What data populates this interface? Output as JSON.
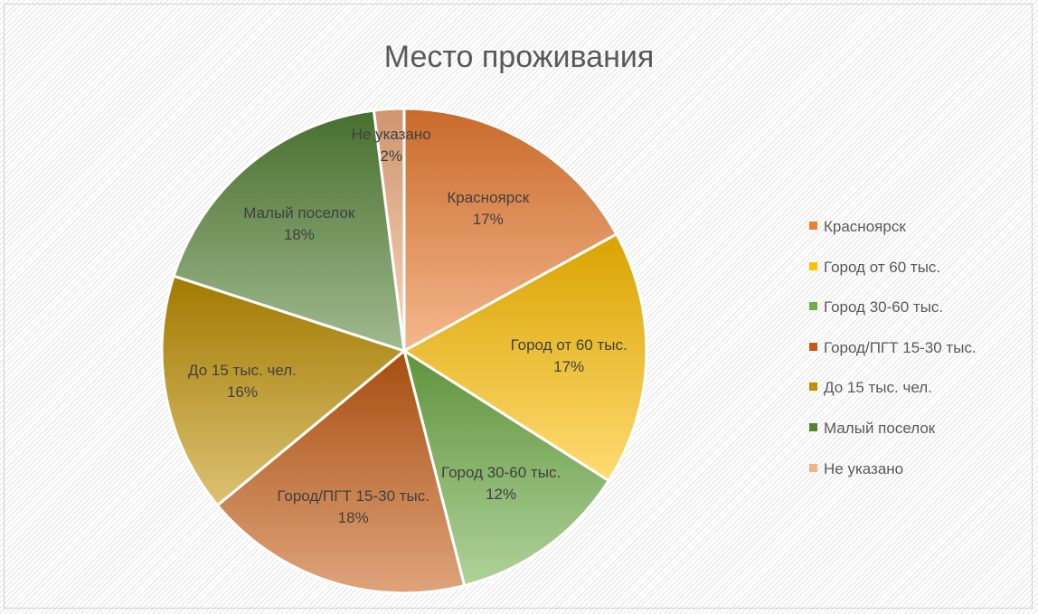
{
  "chart_data": {
    "type": "pie",
    "title": "Место проживания",
    "categories": [
      "Красноярск",
      "Город от 60 тыс.",
      "Город 30-60 тыс.",
      "Город/ПГТ 15-30 тыс.",
      "До 15 тыс. чел.",
      "Малый поселок",
      "Не указано"
    ],
    "values": [
      17,
      17,
      12,
      18,
      16,
      18,
      2
    ],
    "value_labels": [
      "17%",
      "17%",
      "12%",
      "18%",
      "16%",
      "18%",
      "2%"
    ],
    "colors": [
      "#ED7D31",
      "#FFC000",
      "#70AD47",
      "#C55A11",
      "#BF9000",
      "#548235",
      "#F4B183"
    ],
    "legend": "right"
  }
}
